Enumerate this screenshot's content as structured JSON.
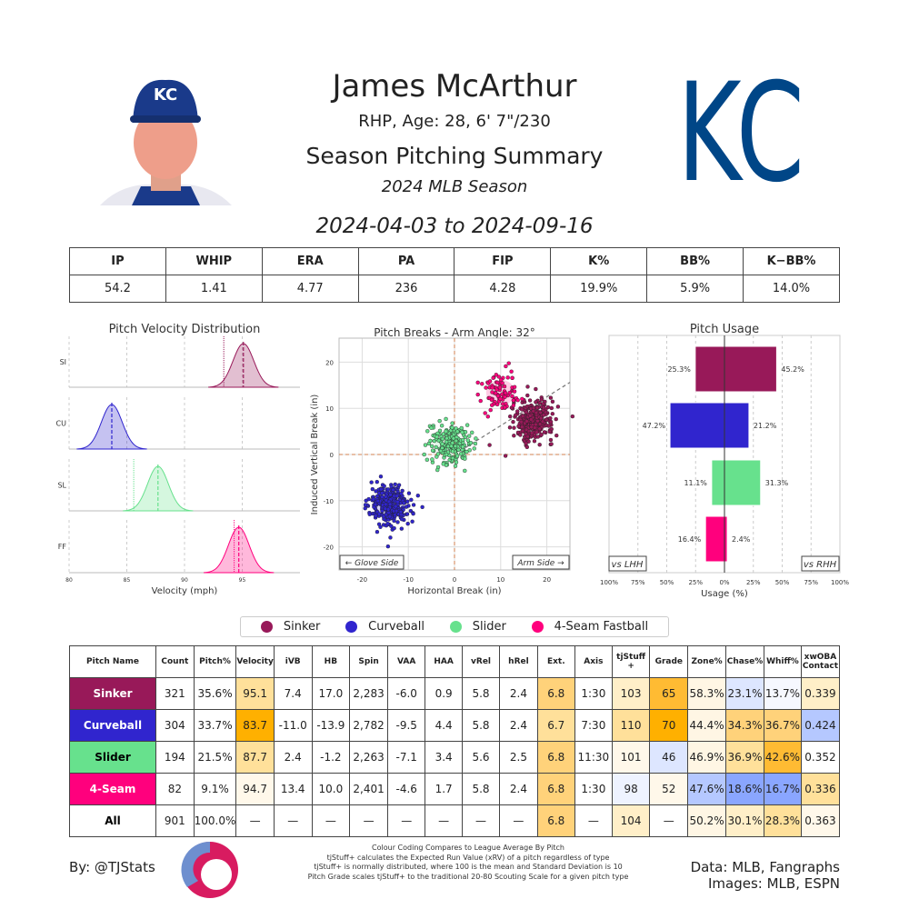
{
  "header": {
    "player_name": "James McArthur",
    "bio": "RHP, Age: 28, 6' 7\"/230",
    "title": "Season Pitching Summary",
    "season": "2024 MLB Season",
    "date_range": "2024-04-03 to 2024-09-16",
    "team_logo_text": "KC"
  },
  "stats": {
    "headers": [
      "IP",
      "WHIP",
      "ERA",
      "PA",
      "FIP",
      "K%",
      "BB%",
      "K−BB%"
    ],
    "values": [
      "54.2",
      "1.41",
      "4.77",
      "236",
      "4.28",
      "19.9%",
      "5.9%",
      "14.0%"
    ]
  },
  "pitch_colors": {
    "Sinker": "#981959",
    "Curveball": "#3025ce",
    "Slider": "#67e18d",
    "4-Seam Fastball": "#ff007d"
  },
  "chart_data": [
    {
      "type": "area",
      "title": "Pitch Velocity Distribution",
      "xlabel": "Velocity (mph)",
      "xlim": [
        80,
        100
      ],
      "xticks": [
        "80",
        "85",
        "90",
        "95"
      ],
      "grid": true,
      "series": [
        {
          "name": "SI",
          "mean": 95.1,
          "league_avg": 93.4,
          "color": "#981959"
        },
        {
          "name": "CU",
          "mean": 83.7,
          "color": "#3025ce"
        },
        {
          "name": "SL",
          "mean": 87.7,
          "league_avg": 85.6,
          "color": "#67e18d"
        },
        {
          "name": "FF",
          "mean": 94.7,
          "league_avg": 94.3,
          "color": "#ff007d"
        }
      ]
    },
    {
      "type": "scatter",
      "title": "Pitch Breaks - Arm Angle: 32°",
      "xlabel": "Horizontal Break (in)",
      "ylabel": "Induced Vertical Break (in)",
      "xlim": [
        -25,
        25
      ],
      "ylim": [
        -25,
        25
      ],
      "xticks": [
        "-20",
        "-10",
        "0",
        "10",
        "20"
      ],
      "yticks": [
        "20",
        "10",
        "0",
        "-10",
        "-20"
      ],
      "grid": true,
      "arm_angle": 32,
      "left_label": "← Glove Side",
      "right_label": "Arm Side →",
      "series": [
        {
          "name": "Sinker",
          "hb": 17.0,
          "ivb": 7.4,
          "count": 321
        },
        {
          "name": "Curveball",
          "hb": -13.9,
          "ivb": -11.0,
          "count": 304
        },
        {
          "name": "Slider",
          "hb": -1.2,
          "ivb": 2.4,
          "count": 194
        },
        {
          "name": "4-Seam Fastball",
          "hb": 10.0,
          "ivb": 13.4,
          "count": 82
        }
      ]
    },
    {
      "type": "bar",
      "title": "Pitch Usage",
      "xlabel": "Usage (%)",
      "xlim": [
        -100,
        100
      ],
      "xticks": [
        "100%",
        "75%",
        "50%",
        "25%",
        "0%",
        "25%",
        "50%",
        "75%",
        "100%"
      ],
      "left_label": "vs LHH",
      "right_label": "vs RHH",
      "categories": [
        "Sinker",
        "Curveball",
        "Slider",
        "4-Seam Fastball"
      ],
      "series": [
        {
          "name": "vs LHH",
          "values": [
            25.3,
            47.2,
            11.1,
            16.4
          ],
          "labels": [
            "25.3%",
            "47.2%",
            "11.1%",
            "16.4%"
          ]
        },
        {
          "name": "vs RHH",
          "values": [
            45.2,
            21.2,
            31.3,
            2.4
          ],
          "labels": [
            "45.2%",
            "21.2%",
            "31.3%",
            "2.4%"
          ]
        }
      ]
    }
  ],
  "legend": [
    "Sinker",
    "Curveball",
    "Slider",
    "4-Seam Fastball"
  ],
  "pitch_table": {
    "headers": [
      "Pitch Name",
      "Count",
      "Pitch%",
      "Velocity",
      "iVB",
      "HB",
      "Spin",
      "VAA",
      "HAA",
      "vRel",
      "hRel",
      "Ext.",
      "Axis",
      "tjStuff +",
      "Grade",
      "Zone%",
      "Chase%",
      "Whiff%",
      "xwOBA Contact"
    ],
    "rows": [
      {
        "name": "Sinker",
        "bg": "#981959",
        "fg": "#fff",
        "cells": [
          "321",
          "35.6%",
          "95.1",
          "7.4",
          "17.0",
          "2,283",
          "-6.0",
          "0.9",
          "5.8",
          "2.4",
          "6.8",
          "1:30",
          "103",
          "65",
          "58.3%",
          "23.1%",
          "13.7%",
          "0.339"
        ],
        "colors": [
          "",
          "",
          "#ffe09a",
          "",
          "",
          "",
          "",
          "",
          "",
          "",
          "#ffd27a",
          "",
          "#ffefc8",
          "#ffbb33",
          "#fff6e4",
          "#dde6ff",
          "#f6f8ff",
          "#ffefc8"
        ]
      },
      {
        "name": "Curveball",
        "bg": "#3025ce",
        "fg": "#fff",
        "cells": [
          "304",
          "33.7%",
          "83.7",
          "-11.0",
          "-13.9",
          "2,782",
          "-9.5",
          "4.4",
          "5.8",
          "2.4",
          "6.7",
          "7:30",
          "110",
          "70",
          "44.4%",
          "34.3%",
          "36.7%",
          "0.424"
        ],
        "colors": [
          "",
          "",
          "#ffb000",
          "",
          "",
          "",
          "",
          "",
          "",
          "",
          "#ffe09a",
          "",
          "#ffe09a",
          "#ffb000",
          "#fff6e4",
          "#ffd27a",
          "#ffd27a",
          "#b5c8ff"
        ]
      },
      {
        "name": "Slider",
        "bg": "#67e18d",
        "fg": "#000",
        "cells": [
          "194",
          "21.5%",
          "87.7",
          "2.4",
          "-1.2",
          "2,263",
          "-7.1",
          "3.4",
          "5.6",
          "2.5",
          "6.8",
          "11:30",
          "101",
          "46",
          "46.9%",
          "36.9%",
          "42.6%",
          "0.352"
        ],
        "colors": [
          "",
          "",
          "#ffe09a",
          "",
          "",
          "",
          "",
          "",
          "",
          "",
          "#ffd27a",
          "",
          "#fff8ea",
          "#dde6ff",
          "#fff6e4",
          "#ffe09a",
          "#ffbb33",
          ""
        ]
      },
      {
        "name": "4-Seam",
        "bg": "#ff007d",
        "fg": "#fff",
        "cells": [
          "82",
          "9.1%",
          "94.7",
          "13.4",
          "10.0",
          "2,401",
          "-4.6",
          "1.7",
          "5.8",
          "2.4",
          "6.8",
          "1:30",
          "98",
          "52",
          "47.6%",
          "18.6%",
          "16.7%",
          "0.336"
        ],
        "colors": [
          "",
          "",
          "#fff8ea",
          "",
          "",
          "",
          "",
          "",
          "",
          "",
          "#ffd27a",
          "",
          "#eef3ff",
          "#fff8ea",
          "#b5c8ff",
          "#8aa6ff",
          "#8aa6ff",
          "#ffe09a"
        ]
      },
      {
        "name": "All",
        "bg": "#fff",
        "fg": "#000",
        "cells": [
          "901",
          "100.0%",
          "—",
          "—",
          "—",
          "—",
          "—",
          "—",
          "—",
          "—",
          "6.8",
          "—",
          "104",
          "—",
          "50.2%",
          "30.1%",
          "28.3%",
          "0.363"
        ],
        "colors": [
          "",
          "",
          "",
          "",
          "",
          "",
          "",
          "",
          "",
          "",
          "#ffd27a",
          "",
          "#ffefc8",
          "",
          "#fff6e4",
          "#ffefc8",
          "#ffe09a",
          "#fff8ea"
        ]
      }
    ]
  },
  "footer": {
    "by": "By: @TJStats",
    "notes": [
      "Colour Coding Compares to League Average By Pitch",
      "tjStuff+ calculates the Expected Run Value (xRV) of a pitch regardless of type",
      "tjStuff+ is normally distributed, where 100 is the mean and Standard Deviation is 10",
      "Pitch Grade scales tjStuff+ to the traditional 20-80 Scouting Scale for a given pitch type"
    ],
    "source_data": "Data: MLB, Fangraphs",
    "source_images": "Images: MLB, ESPN"
  }
}
